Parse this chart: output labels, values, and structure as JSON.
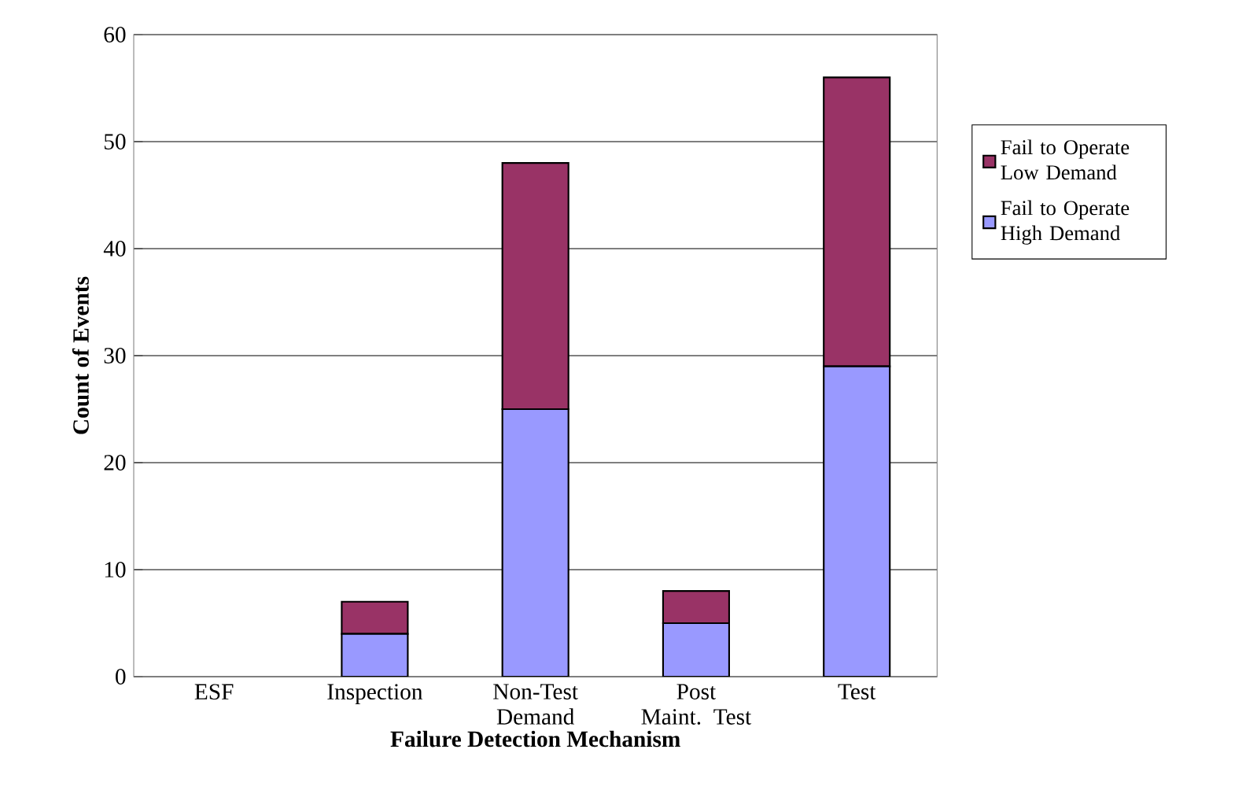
{
  "chart_data": {
    "type": "bar",
    "stacked": true,
    "xlabel": "Failure Detection Mechanism",
    "ylabel": "Count of Events",
    "categories": [
      "ESF",
      "Inspection",
      "Non-Test Demand",
      "Post Maint. Test",
      "Test"
    ],
    "series": [
      {
        "name": "Fail to Operate High Demand",
        "color": "#9999ff",
        "values": [
          0,
          4,
          25,
          5,
          29
        ]
      },
      {
        "name": "Fail to Operate Low Demand",
        "color": "#993366",
        "values": [
          0,
          3,
          23,
          3,
          27
        ]
      }
    ],
    "ylim": [
      0,
      60
    ],
    "yticks": [
      0,
      10,
      20,
      30,
      40,
      50,
      60
    ],
    "grid": "y",
    "legend": "right"
  }
}
